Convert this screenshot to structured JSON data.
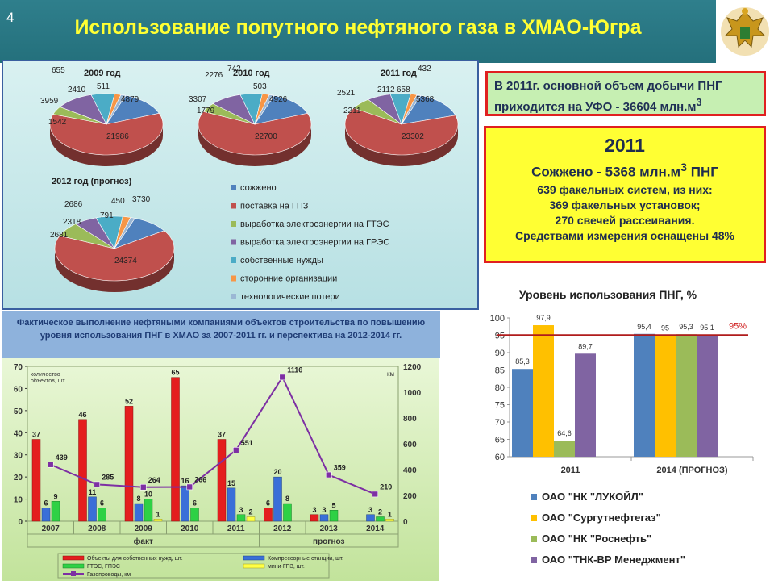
{
  "slide_number": "4",
  "title": "Использование попутного нефтяного газа в ХМАО-Югра",
  "pie_legend": [
    {
      "label": "сожжено",
      "color": "#4f81bd"
    },
    {
      "label": "поставка на ГПЗ",
      "color": "#c0504d"
    },
    {
      "label": "выработка электроэнергии на ГТЭС",
      "color": "#9bbb59"
    },
    {
      "label": "выработка электроэнергии на ГРЭС",
      "color": "#8064a2"
    },
    {
      "label": "собственные нужды",
      "color": "#4bacc6"
    },
    {
      "label": "сторонние организации",
      "color": "#f79646"
    },
    {
      "label": "технологические потери",
      "color": "#9bb7d4"
    }
  ],
  "info_box_1": {
    "line1": "В 2011г. основной объем добычи ПНГ",
    "line2": "приходится на УФО - 36604 млн.м",
    "sup": "3"
  },
  "info_box_2": {
    "year": "2011",
    "burned_a": "Сожжено - 5368 млн.м",
    "burned_sup": "3",
    "burned_b": " ПНГ",
    "line1": "639 факельных систем, из них:",
    "line2": "369 факельных установок;",
    "line3": "270 свечей рассеивания.",
    "line4": "Средствами измерения оснащены 48%"
  },
  "fact_caption": "Фактическое выполнение нефтяными компаниями объектов строительства по повышению уровня использования ПНГ в ХМАО за 2007-2011 гг. и перспектива на 2012-2014 гг.",
  "right_chart_title": "Уровень использования ПНГ, %",
  "chart_data": [
    {
      "type": "pie",
      "title": "2009 год",
      "categories": [
        "сожжено",
        "поставка на ГПЗ",
        "выработка электроэнергии на ГТЭС",
        "выработка электроэнергии на ГРЭС",
        "собственные нужды",
        "сторонние организации",
        "технологические потери"
      ],
      "values": [
        4879,
        21986,
        1542,
        3959,
        2410,
        655,
        511
      ]
    },
    {
      "type": "pie",
      "title": "2010 год",
      "categories": [
        "сожжено",
        "поставка на ГПЗ",
        "выработка электроэнергии на ГТЭС",
        "выработка электроэнергии на ГРЭС",
        "собственные нужды",
        "сторонние организации",
        "технологические потери"
      ],
      "values": [
        4926,
        22700,
        1779,
        3307,
        2276,
        742,
        503
      ]
    },
    {
      "type": "pie",
      "title": "2011 год",
      "categories": [
        "сожжено",
        "поставка на ГПЗ",
        "выработка электроэнергии на ГТЭС",
        "выработка электроэнергии на ГРЭС",
        "собственные нужды",
        "сторонние организации",
        "технологические потери"
      ],
      "values": [
        5368,
        23302,
        2211,
        2521,
        2112,
        658,
        432
      ]
    },
    {
      "type": "pie",
      "title": "2012 год (прогноз)",
      "categories": [
        "сожжено",
        "поставка на ГПЗ",
        "выработка электроэнергии на ГТЭС",
        "выработка электроэнергии на ГРЭС",
        "собственные нужды",
        "сторонние организации",
        "технологические потери"
      ],
      "values": [
        3730,
        24374,
        2681,
        2318,
        2686,
        791,
        450
      ]
    },
    {
      "type": "bar",
      "title": "",
      "categories": [
        "2007",
        "2008",
        "2009",
        "2010",
        "2011",
        "2012",
        "2013",
        "2014"
      ],
      "group_labels": [
        "факт",
        "прогноз"
      ],
      "ylabel": "количество объектов, шт.",
      "y2label": "км",
      "ylim": [
        0,
        70
      ],
      "y2lim": [
        0,
        1200
      ],
      "yticks": [
        0,
        10,
        20,
        30,
        40,
        50,
        60,
        70
      ],
      "y2ticks": [
        0,
        200,
        400,
        600,
        800,
        1000,
        1200
      ],
      "series": [
        {
          "name": "Объекты для собственных нужд, шт.",
          "color": "#e41e1e",
          "values": [
            37,
            46,
            52,
            65,
            37,
            6,
            3,
            0
          ]
        },
        {
          "name": "Компрессорные станции, шт.",
          "color": "#3a6fd8",
          "values": [
            6,
            11,
            8,
            16,
            15,
            20,
            3,
            3
          ]
        },
        {
          "name": "ГТЭС, ГПЭС",
          "color": "#2ed145",
          "values": [
            9,
            6,
            10,
            6,
            3,
            8,
            5,
            2
          ]
        },
        {
          "name": "мини-ГПЗ, шт.",
          "color": "#ffff44",
          "values": [
            0,
            0,
            1,
            0,
            2,
            0,
            0,
            1
          ]
        }
      ],
      "line_series": {
        "name": "Газопроводы, км",
        "color": "#7d2fa3",
        "values": [
          439,
          285,
          264,
          266,
          551,
          1116,
          359,
          210
        ]
      }
    },
    {
      "type": "bar",
      "title": "Уровень использования ПНГ, %",
      "categories": [
        "2011",
        "2014 (ПРОГНОЗ)"
      ],
      "ylim": [
        60,
        100
      ],
      "yticks": [
        60,
        65,
        70,
        75,
        80,
        85,
        90,
        95,
        100
      ],
      "reference_line": {
        "value": 95,
        "label": "95%",
        "color": "#b01c1c"
      },
      "series": [
        {
          "name": "ОАО \"НК \"ЛУКОЙЛ\"",
          "color": "#4f81bd",
          "values": [
            85.3,
            95.4
          ]
        },
        {
          "name": "ОАО \"Сургутнефтегаз\"",
          "color": "#ffc000",
          "values": [
            97.9,
            95
          ]
        },
        {
          "name": "ОАО \"НК \"Роснефть\"",
          "color": "#9bbb59",
          "values": [
            64.6,
            95.3
          ]
        },
        {
          "name": "ОАО \"ТНК-ВР Менеджмент\"",
          "color": "#8064a2",
          "values": [
            89.7,
            95.1
          ]
        }
      ]
    }
  ]
}
